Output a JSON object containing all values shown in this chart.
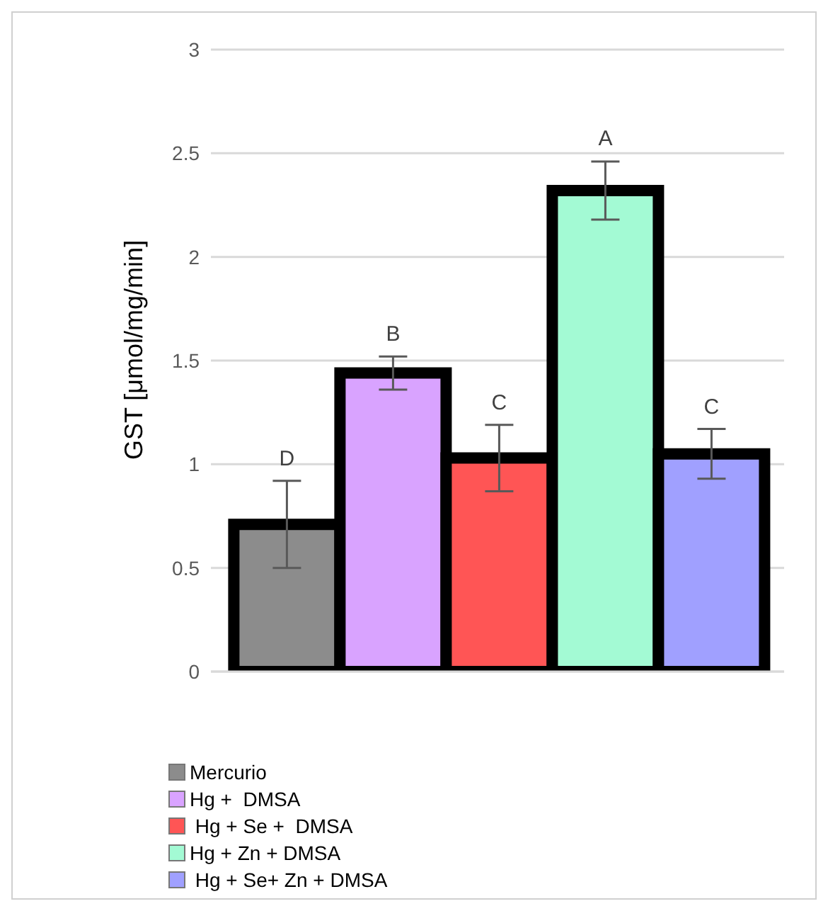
{
  "chart_data": {
    "type": "bar",
    "ylabel": "GST [μmol/mg/min]",
    "categories": [
      null
    ],
    "series": [
      {
        "name": "Mercurio",
        "color": "#8c8c8c",
        "values": [
          0.71
        ],
        "errors": [
          0.21
        ]
      },
      {
        "name": "Hg +  DMSA",
        "color": "#d9a3ff",
        "values": [
          1.44
        ],
        "errors": [
          0.08
        ]
      },
      {
        "name": " Hg + Se +  DMSA",
        "color": "#ff5555",
        "values": [
          1.03
        ],
        "errors": [
          0.16
        ]
      },
      {
        "name": "Hg + Zn + DMSA",
        "color": "#a3fad4",
        "values": [
          2.32
        ],
        "errors": [
          0.14
        ]
      },
      {
        "name": " Hg + Se+ Zn + DMSA",
        "color": "#a0a0ff",
        "values": [
          1.05
        ],
        "errors": [
          0.12
        ]
      }
    ],
    "annotations": [
      "D",
      "B",
      "C",
      "A",
      "C"
    ],
    "ylim": [
      0,
      3
    ],
    "yticks": [
      0,
      0.5,
      1,
      1.5,
      2,
      2.5,
      3
    ],
    "grid": "y",
    "legend": "bottom left"
  }
}
